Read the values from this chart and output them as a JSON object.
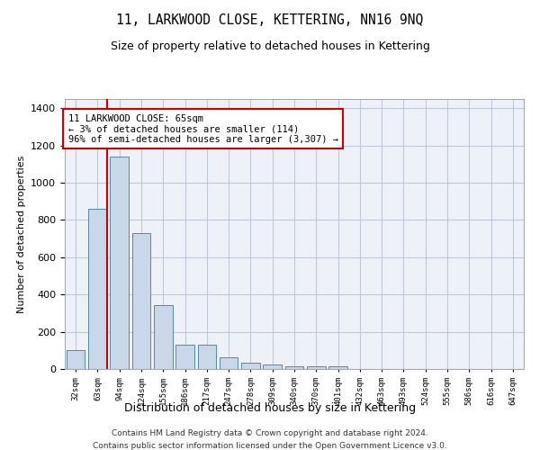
{
  "title": "11, LARKWOOD CLOSE, KETTERING, NN16 9NQ",
  "subtitle": "Size of property relative to detached houses in Kettering",
  "xlabel": "Distribution of detached houses by size in Kettering",
  "ylabel": "Number of detached properties",
  "categories": [
    "32sqm",
    "63sqm",
    "94sqm",
    "124sqm",
    "155sqm",
    "186sqm",
    "217sqm",
    "247sqm",
    "278sqm",
    "309sqm",
    "340sqm",
    "370sqm",
    "401sqm",
    "432sqm",
    "463sqm",
    "493sqm",
    "524sqm",
    "555sqm",
    "586sqm",
    "616sqm",
    "647sqm"
  ],
  "values": [
    100,
    860,
    1140,
    730,
    345,
    130,
    130,
    65,
    32,
    22,
    15,
    15,
    13,
    0,
    0,
    0,
    0,
    0,
    0,
    0,
    0
  ],
  "bar_color": "#c8d8e8",
  "bar_edge_color": "#5588aa",
  "vline_x_index": 1,
  "vline_color": "#cc0000",
  "annotation_text": "11 LARKWOOD CLOSE: 65sqm\n← 3% of detached houses are smaller (114)\n96% of semi-detached houses are larger (3,307) →",
  "annotation_box_edgecolor": "#cc0000",
  "ylim": [
    0,
    1450
  ],
  "yticks": [
    0,
    200,
    400,
    600,
    800,
    1000,
    1200,
    1400
  ],
  "grid_color": "#c0c8d8",
  "background_color": "#eef2f8",
  "footnote1": "Contains HM Land Registry data © Crown copyright and database right 2024.",
  "footnote2": "Contains public sector information licensed under the Open Government Licence v3.0."
}
